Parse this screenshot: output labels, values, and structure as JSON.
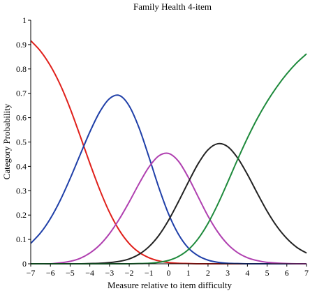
{
  "chart_data": {
    "type": "line",
    "title": "Family Health 4-item",
    "xlabel": "Measure relative to item difficulty",
    "ylabel": "Category Probability",
    "xlim": [
      -7,
      7
    ],
    "ylim": [
      0,
      1
    ],
    "x_ticks": [
      "−7",
      "−6",
      "−5",
      "−4",
      "−3",
      "−2",
      "−1",
      "0",
      "1",
      "2",
      "3",
      "4",
      "5",
      "6",
      "7"
    ],
    "y_ticks": [
      "0",
      "0.1",
      "0.2",
      "0.3",
      "0.4",
      "0.5",
      "0.6",
      "0.7",
      "0.8",
      "0.9",
      "1"
    ],
    "grid": false,
    "legend": "none",
    "x": [
      -7,
      -6.5,
      -6,
      -5.5,
      -5,
      -4.5,
      -4,
      -3.5,
      -3,
      -2.5,
      -2,
      -1.5,
      -1,
      -0.5,
      0,
      0.5,
      1,
      1.5,
      2,
      2.5,
      3,
      3.5,
      4,
      4.5,
      5,
      5.5,
      6,
      6.5,
      7
    ],
    "series": [
      {
        "color": "#e0201b",
        "values": [
          0.916,
          0.873,
          0.813,
          0.735,
          0.638,
          0.527,
          0.413,
          0.305,
          0.211,
          0.137,
          0.083,
          0.047,
          0.025,
          0.012,
          0.005,
          0.002,
          0.001,
          0.0,
          0.0,
          0.0,
          0.0,
          0.0,
          0.0,
          0.0,
          0.0,
          0.0,
          0.0,
          0.0,
          0.0
        ]
      },
      {
        "color": "#1f3fa8",
        "values": [
          0.084,
          0.127,
          0.186,
          0.261,
          0.35,
          0.446,
          0.541,
          0.623,
          0.678,
          0.691,
          0.648,
          0.558,
          0.439,
          0.314,
          0.204,
          0.121,
          0.065,
          0.033,
          0.015,
          0.006,
          0.002,
          0.001,
          0.0,
          0.0,
          0.0,
          0.0,
          0.0,
          0.0,
          0.0
        ]
      },
      {
        "color": "#b040b0",
        "values": [
          0.0,
          0.0,
          0.0,
          0.004,
          0.01,
          0.022,
          0.044,
          0.077,
          0.124,
          0.184,
          0.254,
          0.329,
          0.397,
          0.443,
          0.453,
          0.421,
          0.355,
          0.275,
          0.196,
          0.13,
          0.08,
          0.046,
          0.025,
          0.013,
          0.006,
          0.003,
          0.001,
          0.0,
          0.0
        ]
      },
      {
        "color": "#222222",
        "values": [
          0.0,
          0.0,
          0.0,
          0.0,
          0.0,
          0.0,
          0.001,
          0.002,
          0.005,
          0.01,
          0.02,
          0.039,
          0.07,
          0.116,
          0.179,
          0.255,
          0.335,
          0.411,
          0.468,
          0.493,
          0.481,
          0.435,
          0.367,
          0.29,
          0.216,
          0.153,
          0.104,
          0.068,
          0.044
        ]
      },
      {
        "color": "#1e8a3c",
        "values": [
          0.0,
          0.0,
          0.0,
          0.0,
          0.0,
          0.0,
          0.0,
          0.0,
          0.0,
          0.0,
          0.0,
          0.001,
          0.002,
          0.006,
          0.014,
          0.03,
          0.058,
          0.103,
          0.166,
          0.245,
          0.335,
          0.428,
          0.516,
          0.596,
          0.666,
          0.727,
          0.78,
          0.825,
          0.862
        ]
      }
    ]
  }
}
